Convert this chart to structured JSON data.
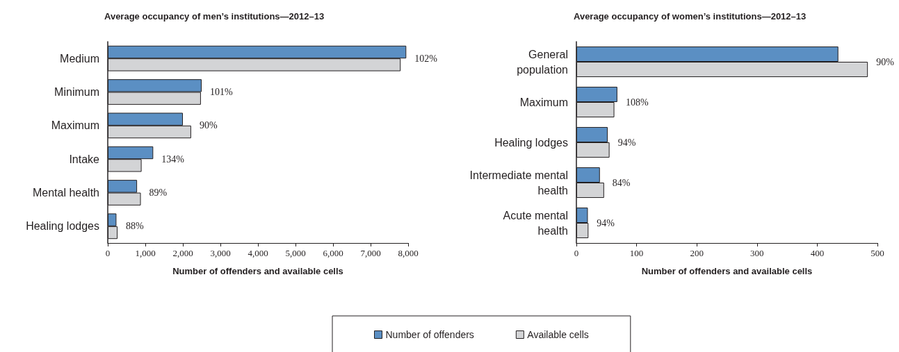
{
  "chart_data": [
    {
      "type": "bar",
      "orientation": "horizontal",
      "title": "Average occupancy of men’s institutions—2012–13",
      "xlabel": "Number of offenders and available cells",
      "categories": [
        "Medium",
        "Minimum",
        "Maximum",
        "Intake",
        "Mental health",
        "Healing lodges"
      ],
      "series": [
        {
          "name": "Number of offenders",
          "color": "#5b8fc3",
          "values": [
            7950,
            2500,
            2000,
            1210,
            780,
            230
          ]
        },
        {
          "name": "Available cells",
          "color": "#d3d4d6",
          "values": [
            7800,
            2480,
            2220,
            900,
            880,
            260
          ]
        }
      ],
      "annotations": [
        {
          "text": "102%",
          "x": 7950,
          "y": "Medium"
        },
        {
          "text": "101%",
          "x": 2500,
          "y": "Minimum"
        },
        {
          "text": "90%",
          "x": 2220,
          "y": "Maximum"
        },
        {
          "text": "134%",
          "x": 1210,
          "y": "Intake"
        },
        {
          "text": "89%",
          "x": 880,
          "y": "Mental health"
        },
        {
          "text": "88%",
          "x": 260,
          "y": "Healing lodges"
        }
      ],
      "xlim": [
        0,
        8000
      ],
      "xticks": [
        0,
        {
          "value": 1000,
          "label": "1,000"
        },
        {
          "value": 2000,
          "label": "2,000"
        },
        {
          "value": 3000,
          "label": "3,000"
        },
        {
          "value": 4000,
          "label": "4,000"
        },
        {
          "value": 5000,
          "label": "5,000"
        },
        {
          "value": 6000,
          "label": "6,000"
        },
        {
          "value": 7000,
          "label": "7,000"
        },
        {
          "value": 8000,
          "label": "8,000"
        }
      ],
      "grid": false,
      "legend": "bottom"
    },
    {
      "type": "bar",
      "orientation": "horizontal",
      "title": "Average occupancy of women’s institutions—2012–13",
      "xlabel": "Number of offenders and available cells",
      "categories": [
        "General\npopulation",
        "Maximum",
        "Healing lodges",
        "Intermediate mental\nhealth",
        "Acute mental\nhealth"
      ],
      "series": [
        {
          "color": "#5b8fc3",
          "values": [
            435,
            68,
            52,
            39,
            19
          ]
        },
        {
          "color": "#d3d4d6",
          "values": [
            484,
            63,
            55,
            46,
            20
          ]
        }
      ],
      "annotations": [
        {
          "text": "90%",
          "x": 484,
          "y": "General\npopulation"
        },
        {
          "text": "108%",
          "x": 68,
          "y": "Maximum"
        },
        {
          "text": "94%",
          "x": 55,
          "y": "Healing lodges"
        },
        {
          "text": "84%",
          "x": 46,
          "y": "Intermediate mental\nhealth"
        },
        {
          "text": "94%",
          "x": 20,
          "y": "Acute mental\nhealth"
        }
      ],
      "xlim": [
        0,
        500
      ],
      "xticks": [
        0,
        100,
        200,
        300,
        400,
        500
      ],
      "grid": false,
      "legend": false
    }
  ]
}
